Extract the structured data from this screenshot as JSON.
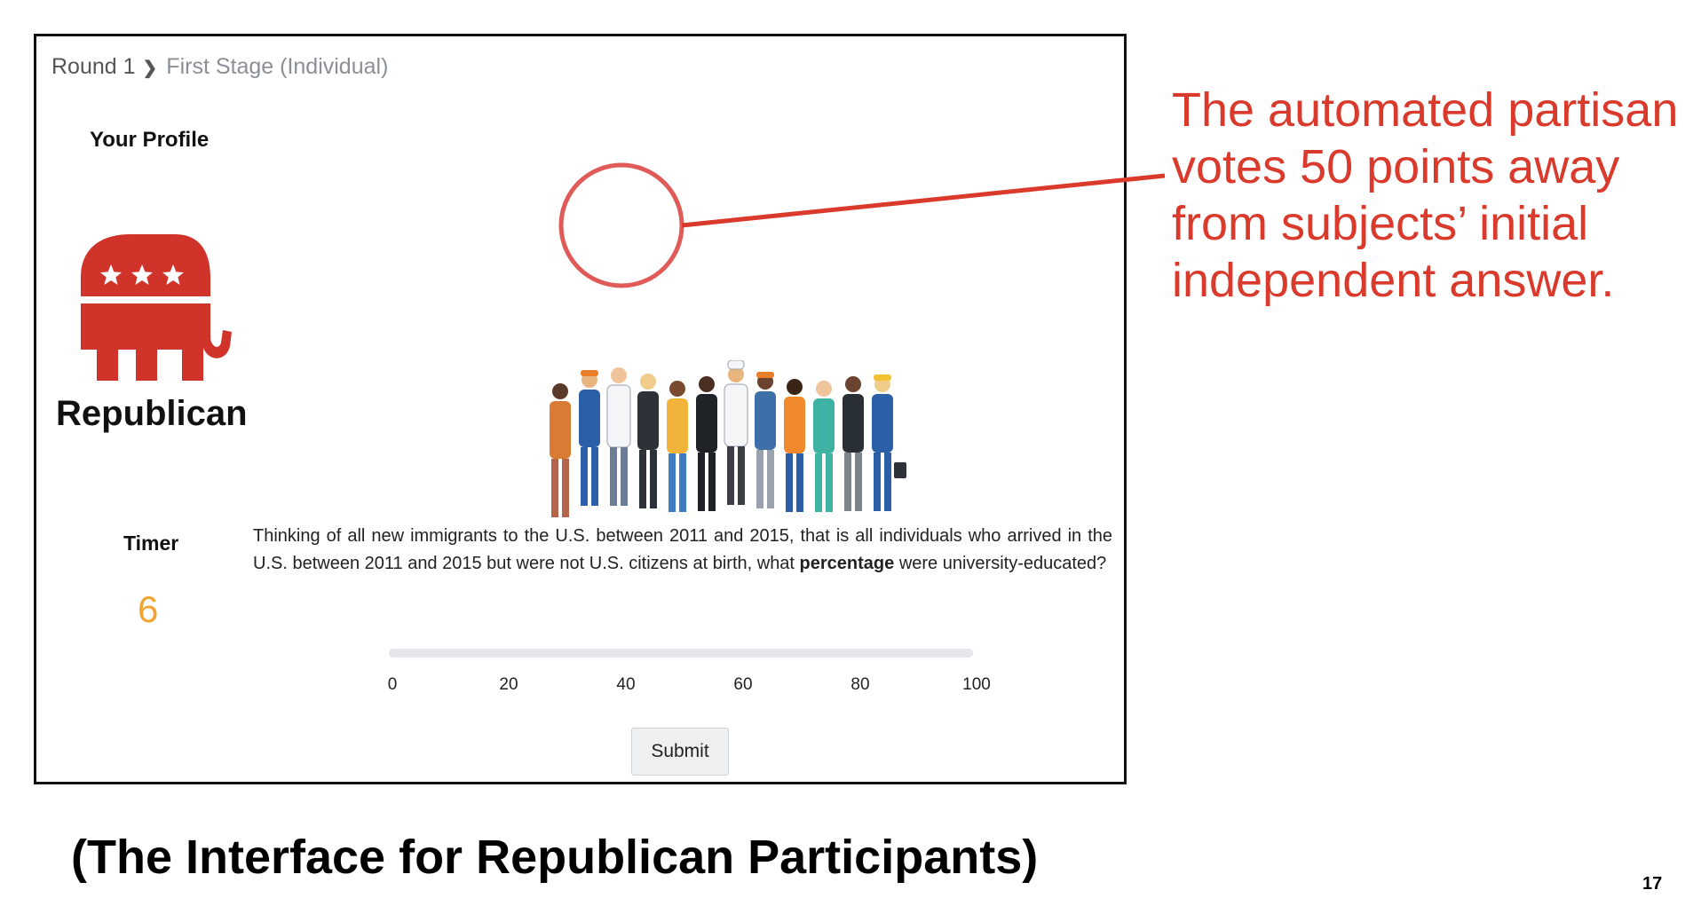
{
  "breadcrumb": {
    "round": "Round 1",
    "stage": "First Stage (Individual)"
  },
  "profile": {
    "title": "Your Profile",
    "party": "Republican"
  },
  "timer": {
    "label": "Timer",
    "value": "6"
  },
  "question": {
    "text_before": "Thinking of all new immigrants to the U.S. between 2011 and 2015, that is all individuals who arrived in the U.S. between 2011 and 2015 but were not U.S. citizens at birth, what ",
    "emphasis": "percentage",
    "text_after": " were university-educated?"
  },
  "slider": {
    "ticks": [
      "0",
      "20",
      "40",
      "60",
      "80",
      "100"
    ]
  },
  "submit_label": "Submit",
  "annotation": {
    "text": "The automated partisan votes 50 points away from subjects’ initial independent answer."
  },
  "caption": "(The Interface for Republican Participants)",
  "page_number": "17",
  "colors": {
    "accent_red": "#d93a2b",
    "timer_orange": "#f0a330",
    "logo_red": "#d0332a"
  },
  "icons": {
    "logo": "republican-elephant-icon",
    "illustration": "diverse-workers-illustration",
    "breadcrumb_separator": "chevron-right-icon"
  }
}
